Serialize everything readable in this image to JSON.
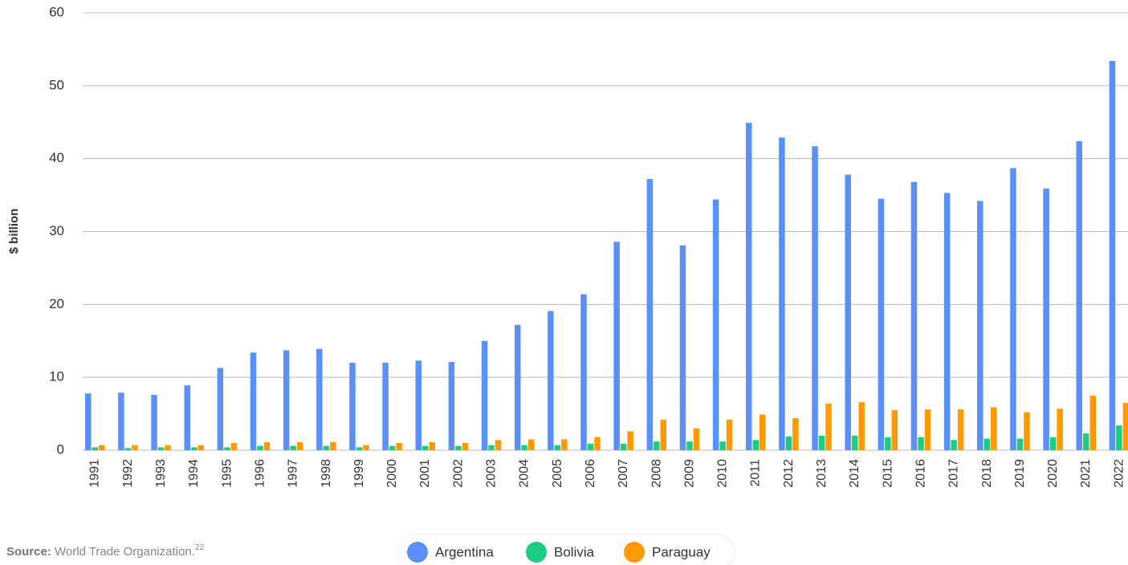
{
  "chart_data": {
    "type": "bar",
    "y_label": "$ billion",
    "categories": [
      "1991",
      "1992",
      "1993",
      "1994",
      "1995",
      "1996",
      "1997",
      "1998",
      "1999",
      "2000",
      "2001",
      "2002",
      "2003",
      "2004",
      "2005",
      "2006",
      "2007",
      "2008",
      "2009",
      "2010",
      "2011",
      "2012",
      "2013",
      "2014",
      "2015",
      "2016",
      "2017",
      "2018",
      "2019",
      "2020",
      "2021",
      "2022"
    ],
    "series": [
      {
        "name": "Argentina",
        "color": "#5b8ff9",
        "values": [
          7.8,
          7.9,
          7.6,
          8.9,
          11.3,
          13.4,
          13.7,
          13.9,
          12.0,
          12.0,
          12.3,
          12.1,
          15.0,
          17.2,
          19.1,
          21.4,
          28.6,
          37.2,
          28.1,
          34.4,
          44.9,
          42.9,
          41.7,
          37.8,
          34.5,
          36.8,
          35.3,
          34.2,
          38.7,
          35.9,
          42.4,
          53.4
        ]
      },
      {
        "name": "Bolivia",
        "color": "#1ecc80",
        "values": [
          0.4,
          0.3,
          0.4,
          0.4,
          0.4,
          0.6,
          0.6,
          0.6,
          0.4,
          0.6,
          0.6,
          0.6,
          0.7,
          0.7,
          0.7,
          0.9,
          0.9,
          1.2,
          1.2,
          1.2,
          1.4,
          1.9,
          2.0,
          2.0,
          1.8,
          1.8,
          1.4,
          1.6,
          1.6,
          1.8,
          2.3,
          3.4
        ]
      },
      {
        "name": "Paraguay",
        "color": "#ff9a05",
        "values": [
          0.7,
          0.7,
          0.7,
          0.7,
          1.0,
          1.1,
          1.1,
          1.1,
          0.7,
          1.0,
          1.1,
          1.0,
          1.4,
          1.5,
          1.5,
          1.8,
          2.6,
          4.2,
          3.0,
          4.2,
          4.9,
          4.4,
          6.4,
          6.6,
          5.5,
          5.6,
          5.6,
          5.9,
          5.2,
          5.7,
          7.5,
          6.5
        ]
      }
    ],
    "ylim": [
      0,
      60
    ],
    "yticks": [
      0,
      10,
      20,
      30,
      40,
      50,
      60
    ],
    "grid": true,
    "source_label": "Source:",
    "source": "World Trade Organization.",
    "source_note": "22"
  }
}
